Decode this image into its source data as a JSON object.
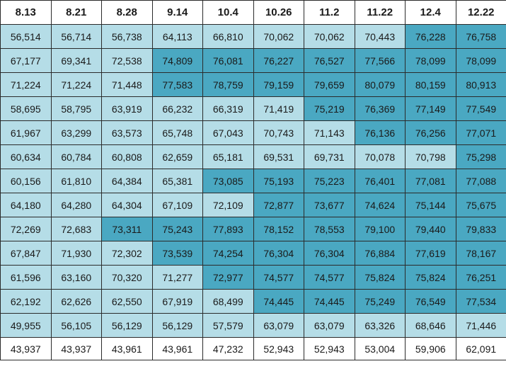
{
  "colors": {
    "white": "#ffffff",
    "light": "#b5dde7",
    "dark": "#4aa8c2"
  },
  "table": {
    "headers": [
      "8.13",
      "8.21",
      "8.28",
      "9.14",
      "10.4",
      "10.26",
      "11.2",
      "11.22",
      "12.4",
      "12.22"
    ],
    "rows": [
      {
        "cells": [
          "56,514",
          "56,714",
          "56,738",
          "64,113",
          "66,810",
          "70,062",
          "70,062",
          "70,443",
          "76,228",
          "76,758"
        ],
        "shades": [
          1,
          1,
          1,
          1,
          1,
          1,
          1,
          1,
          2,
          2
        ]
      },
      {
        "cells": [
          "67,177",
          "69,341",
          "72,538",
          "74,809",
          "76,081",
          "76,227",
          "76,527",
          "77,566",
          "78,099",
          "78,099"
        ],
        "shades": [
          1,
          1,
          1,
          2,
          2,
          2,
          2,
          2,
          2,
          2
        ]
      },
      {
        "cells": [
          "71,224",
          "71,224",
          "71,448",
          "77,583",
          "78,759",
          "79,159",
          "79,659",
          "80,079",
          "80,159",
          "80,913"
        ],
        "shades": [
          1,
          1,
          1,
          2,
          2,
          2,
          2,
          2,
          2,
          2
        ]
      },
      {
        "cells": [
          "58,695",
          "58,795",
          "63,919",
          "66,232",
          "66,319",
          "71,419",
          "75,219",
          "76,369",
          "77,149",
          "77,549"
        ],
        "shades": [
          1,
          1,
          1,
          1,
          1,
          1,
          2,
          2,
          2,
          2
        ]
      },
      {
        "cells": [
          "61,967",
          "63,299",
          "63,573",
          "65,748",
          "67,043",
          "70,743",
          "71,143",
          "76,136",
          "76,256",
          "77,071"
        ],
        "shades": [
          1,
          1,
          1,
          1,
          1,
          1,
          1,
          2,
          2,
          2
        ]
      },
      {
        "cells": [
          "60,634",
          "60,784",
          "60,808",
          "62,659",
          "65,181",
          "69,531",
          "69,731",
          "70,078",
          "70,798",
          "75,298"
        ],
        "shades": [
          1,
          1,
          1,
          1,
          1,
          1,
          1,
          1,
          1,
          2
        ]
      },
      {
        "cells": [
          "60,156",
          "61,810",
          "64,384",
          "65,381",
          "73,085",
          "75,193",
          "75,223",
          "76,401",
          "77,081",
          "77,088"
        ],
        "shades": [
          1,
          1,
          1,
          1,
          2,
          2,
          2,
          2,
          2,
          2
        ]
      },
      {
        "cells": [
          "64,180",
          "64,280",
          "64,304",
          "67,109",
          "72,109",
          "72,877",
          "73,677",
          "74,624",
          "75,144",
          "75,675"
        ],
        "shades": [
          1,
          1,
          1,
          1,
          1,
          2,
          2,
          2,
          2,
          2
        ]
      },
      {
        "cells": [
          "72,269",
          "72,683",
          "73,311",
          "75,243",
          "77,893",
          "78,152",
          "78,553",
          "79,100",
          "79,440",
          "79,833"
        ],
        "shades": [
          1,
          1,
          2,
          2,
          2,
          2,
          2,
          2,
          2,
          2
        ]
      },
      {
        "cells": [
          "67,847",
          "71,930",
          "72,302",
          "73,539",
          "74,254",
          "76,304",
          "76,304",
          "76,884",
          "77,619",
          "78,167"
        ],
        "shades": [
          1,
          1,
          1,
          2,
          2,
          2,
          2,
          2,
          2,
          2
        ]
      },
      {
        "cells": [
          "61,596",
          "63,160",
          "70,320",
          "71,277",
          "72,977",
          "74,577",
          "74,577",
          "75,824",
          "75,824",
          "76,251"
        ],
        "shades": [
          1,
          1,
          1,
          1,
          2,
          2,
          2,
          2,
          2,
          2
        ]
      },
      {
        "cells": [
          "62,192",
          "62,626",
          "62,550",
          "67,919",
          "68,499",
          "74,445",
          "74,445",
          "75,249",
          "76,549",
          "77,534"
        ],
        "shades": [
          1,
          1,
          1,
          1,
          1,
          2,
          2,
          2,
          2,
          2
        ]
      },
      {
        "cells": [
          "49,955",
          "56,105",
          "56,129",
          "56,129",
          "57,579",
          "63,079",
          "63,079",
          "63,326",
          "68,646",
          "71,446"
        ],
        "shades": [
          1,
          1,
          1,
          1,
          1,
          1,
          1,
          1,
          1,
          1
        ]
      },
      {
        "cells": [
          "43,937",
          "43,937",
          "43,961",
          "43,961",
          "47,232",
          "52,943",
          "52,943",
          "53,004",
          "59,906",
          "62,091"
        ],
        "shades": [
          0,
          0,
          0,
          0,
          0,
          0,
          0,
          0,
          0,
          0
        ]
      }
    ]
  }
}
